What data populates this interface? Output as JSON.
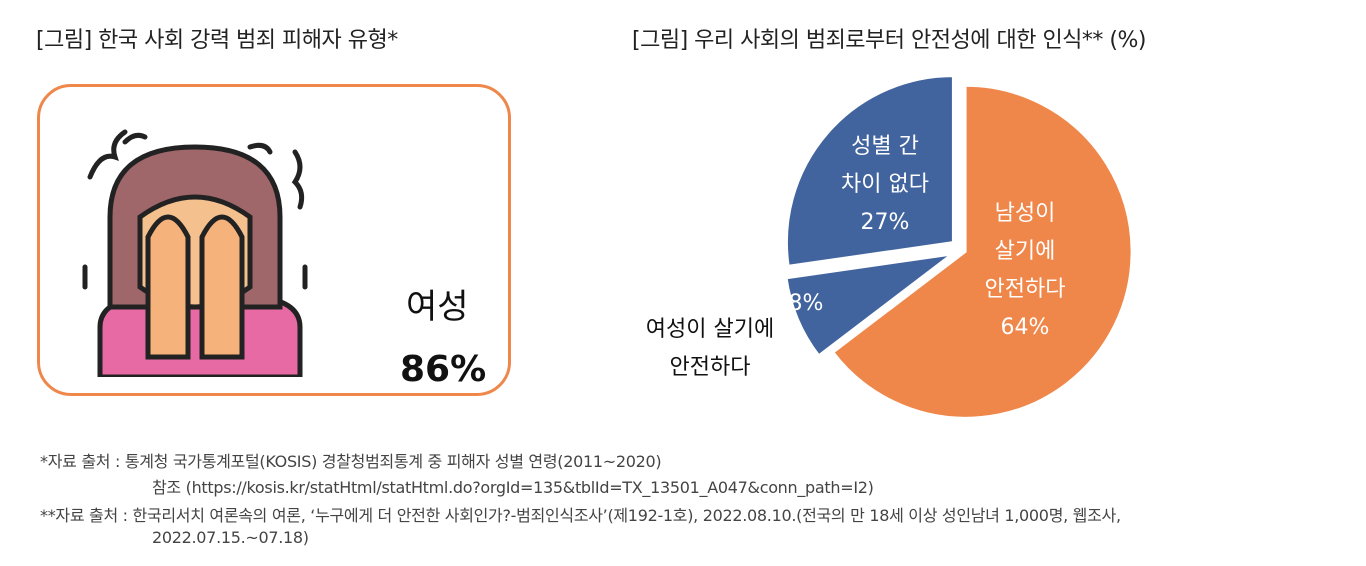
{
  "left_panel": {
    "title": "[그림] 한국 사회 강력 범죄 피해자 유형*",
    "icon": "crying-woman-icon",
    "label": "여성",
    "value": "86%"
  },
  "chart_data": {
    "type": "pie",
    "title": "[그림] 우리 사회의 범죄로부터 안전성에 대한 인식** (%)",
    "slices": [
      {
        "label": "남성이 살기에 안전하다",
        "lines": [
          "남성이",
          "살기에",
          "안전하다"
        ],
        "value": 64,
        "value_label": "64%",
        "color": "#F0874A"
      },
      {
        "label": "여성이 살기에 안전하다",
        "lines": [
          "여성이 살기에",
          "안전하다"
        ],
        "value": 8,
        "value_label": "8%",
        "color": "#42649E"
      },
      {
        "label": "성별 간 차이 없다",
        "lines": [
          "성별 간",
          "차이 없다"
        ],
        "value": 27,
        "value_label": "27%",
        "color": "#42649E"
      }
    ]
  },
  "footnotes": [
    "*자료 출처 : 통계청 국가통계포털(KOSIS) 경찰청범죄통계 중 피해자 성별 연령(2011~2020)",
    "참조 (https://kosis.kr/statHtml/statHtml.do?orgId=135&tblId=TX_13501_A047&conn_path=I2)",
    "**자료 출처 : 한국리서치 여론속의 여론, ‘누구에게 더 안전한 사회인가?-범죄인식조사’(제192-1호), 2022.08.10.(전국의 만 18세 이상 성인남녀 1,000명, 웹조사,",
    "2022.07.15.~07.18)"
  ]
}
